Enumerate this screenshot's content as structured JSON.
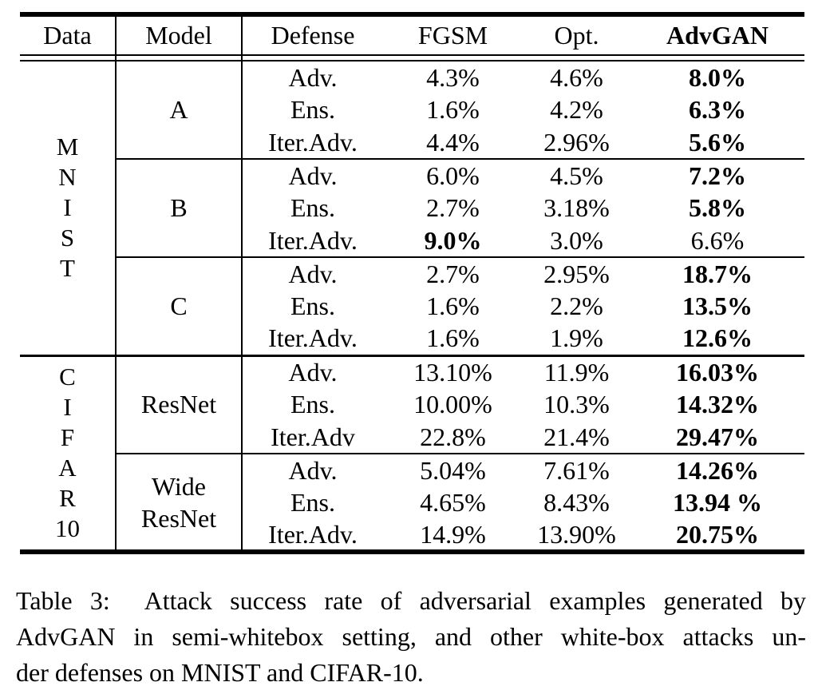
{
  "page": {
    "background_color": "#ffffff",
    "text_color": "#000000"
  },
  "table": {
    "columns": {
      "data": "Data",
      "model": "Model",
      "defense": "Defense",
      "fgsm": "FGSM",
      "opt": "Opt.",
      "advgan": "AdvGAN"
    },
    "datasets": [
      {
        "label": "M\nN\nI\nS\nT",
        "models": [
          {
            "label": "A",
            "rows": [
              {
                "defense": "Adv.",
                "fgsm": "4.3%",
                "opt": "4.6%",
                "advgan": "8.0%",
                "bold_advgan": true
              },
              {
                "defense": "Ens.",
                "fgsm": "1.6%",
                "opt": "4.2%",
                "advgan": "6.3%",
                "bold_advgan": true
              },
              {
                "defense": "Iter.Adv.",
                "fgsm": "4.4%",
                "opt": "2.96%",
                "advgan": "5.6%",
                "bold_advgan": true
              }
            ]
          },
          {
            "label": "B",
            "rows": [
              {
                "defense": "Adv.",
                "fgsm": "6.0%",
                "opt": "4.5%",
                "advgan": "7.2%",
                "bold_advgan": true
              },
              {
                "defense": "Ens.",
                "fgsm": "2.7%",
                "opt": "3.18%",
                "advgan": "5.8%",
                "bold_advgan": true
              },
              {
                "defense": "Iter.Adv.",
                "fgsm": "9.0%",
                "opt": "3.0%",
                "advgan": "6.6%",
                "bold_fgsm": true,
                "bold_advgan": false
              }
            ]
          },
          {
            "label": "C",
            "rows": [
              {
                "defense": "Adv.",
                "fgsm": "2.7%",
                "opt": "2.95%",
                "advgan": "18.7%",
                "bold_advgan": true
              },
              {
                "defense": "Ens.",
                "fgsm": "1.6%",
                "opt": "2.2%",
                "advgan": "13.5%",
                "bold_advgan": true
              },
              {
                "defense": "Iter.Adv.",
                "fgsm": "1.6%",
                "opt": "1.9%",
                "advgan": "12.6%",
                "bold_advgan": true
              }
            ]
          }
        ]
      },
      {
        "label": "C\nI\nF\nA\nR\n10",
        "models": [
          {
            "label": "ResNet",
            "rows": [
              {
                "defense": "Adv.",
                "fgsm": "13.10%",
                "opt": "11.9%",
                "advgan": "16.03%",
                "bold_advgan": true
              },
              {
                "defense": "Ens.",
                "fgsm": "10.00%",
                "opt": "10.3%",
                "advgan": "14.32%",
                "bold_advgan": true
              },
              {
                "defense": "Iter.Adv",
                "fgsm": "22.8%",
                "opt": "21.4%",
                "advgan": "29.47%",
                "bold_advgan": true
              }
            ]
          },
          {
            "label": "Wide\nResNet",
            "rows": [
              {
                "defense": "Adv.",
                "fgsm": "5.04%",
                "opt": "7.61%",
                "advgan": "14.26%",
                "bold_advgan": true
              },
              {
                "defense": "Ens.",
                "fgsm": "4.65%",
                "opt": "8.43%",
                "advgan": "13.94 %",
                "bold_advgan": true
              },
              {
                "defense": "Iter.Adv.",
                "fgsm": "14.9%",
                "opt": "13.90%",
                "advgan": "20.75%",
                "bold_advgan": true
              }
            ]
          }
        ]
      }
    ]
  },
  "caption": {
    "lines": [
      "Table 3:  Attack success rate of adversarial examples generated by",
      "AdvGAN in semi-whitebox setting, and other white-box attacks un-",
      "der defenses on MNIST and CIFAR-10."
    ]
  }
}
